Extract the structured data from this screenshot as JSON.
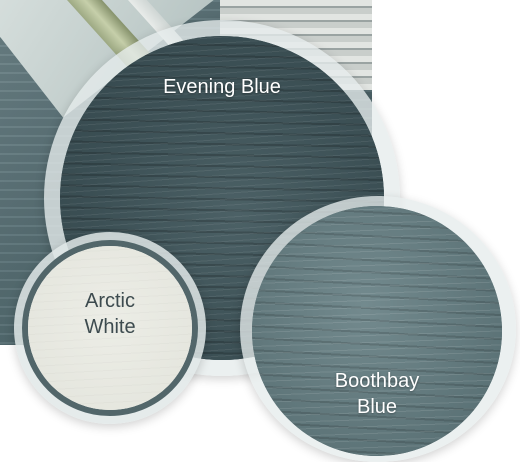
{
  "swatches": {
    "evening_blue": {
      "label": "Evening Blue",
      "color": "#3e5257"
    },
    "arctic_white": {
      "label_line1": "Arctic",
      "label_line2": "White",
      "color": "#e7e8e1"
    },
    "boothbay_blue": {
      "label_line1": "Boothbay",
      "label_line2": "Blue",
      "color": "#62797d"
    }
  }
}
